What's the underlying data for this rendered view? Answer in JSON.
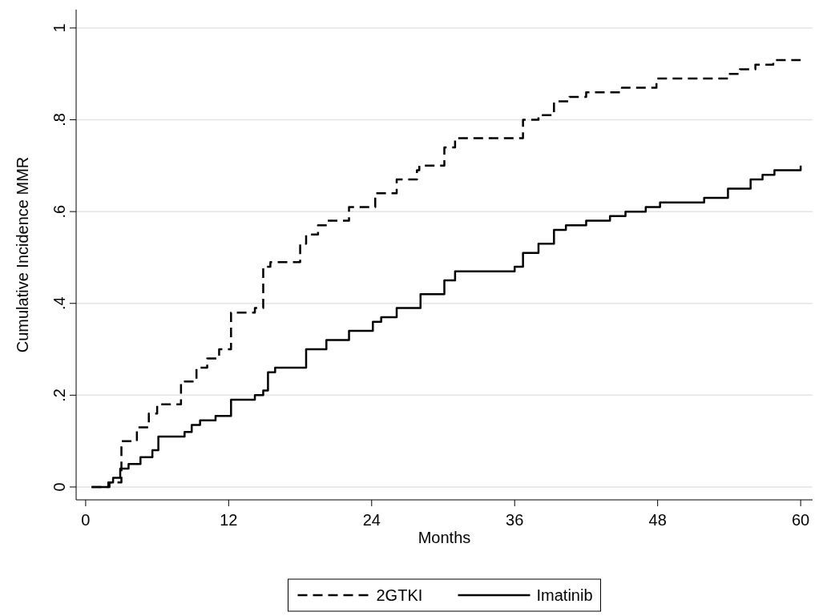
{
  "chart_data": {
    "type": "step",
    "xlabel": "Months",
    "ylabel": "Cumulative Incidence MMR",
    "xlim": [
      -0.8,
      61
    ],
    "ylim": [
      -0.028,
      1.04
    ],
    "xticks": [
      0,
      12,
      24,
      36,
      48,
      60
    ],
    "yticks": [
      0,
      {
        "value": 0.2,
        "label": ".2"
      },
      {
        "value": 0.4,
        "label": ".4"
      },
      {
        "value": 0.6,
        "label": ".6"
      },
      {
        "value": 0.8,
        "label": ".8"
      },
      1
    ],
    "grid": "y",
    "legend": "bottom",
    "series": [
      {
        "name": "2GTKI",
        "color": "#000000",
        "line_style": "dashed",
        "x": [
          0.5,
          1.9,
          3,
          4.3,
          5.3,
          6,
          8,
          9.3,
          10.2,
          11.2,
          12.2,
          14.2,
          14.9,
          15.5,
          18,
          18.5,
          19.5,
          20.3,
          22.1,
          24.3,
          26.1,
          27.8,
          28,
          30.1,
          31,
          35.7,
          36.7,
          38,
          39.3,
          40.6,
          42,
          43.6,
          45,
          47.9,
          53.9,
          54.9,
          56.2,
          57.7,
          60
        ],
        "values": [
          0,
          0.01,
          0.1,
          0.13,
          0.16,
          0.18,
          0.23,
          0.26,
          0.28,
          0.3,
          0.38,
          0.39,
          0.48,
          0.49,
          0.53,
          0.55,
          0.57,
          0.58,
          0.61,
          0.64,
          0.67,
          0.69,
          0.7,
          0.74,
          0.76,
          0.76,
          0.8,
          0.81,
          0.84,
          0.85,
          0.86,
          0.86,
          0.87,
          0.89,
          0.9,
          0.91,
          0.92,
          0.93,
          0.93
        ]
      },
      {
        "name": "Imatinib",
        "color": "#000000",
        "line_style": "solid",
        "x": [
          0.5,
          2,
          2.3,
          2.9,
          3.6,
          4.6,
          5.6,
          6.1,
          8.3,
          8.9,
          9.6,
          10.9,
          12.2,
          14.2,
          14.9,
          15.3,
          15.9,
          18.5,
          20.2,
          22.1,
          24.1,
          24.8,
          26.1,
          28.1,
          30.1,
          31,
          36,
          36.7,
          38,
          39.3,
          40.3,
          42,
          44,
          45.3,
          47,
          48.2,
          51.9,
          53.9,
          55.8,
          56.8,
          57.8,
          60
        ],
        "values": [
          0,
          0.01,
          0.02,
          0.04,
          0.05,
          0.065,
          0.08,
          0.11,
          0.12,
          0.135,
          0.145,
          0.155,
          0.19,
          0.2,
          0.21,
          0.25,
          0.26,
          0.3,
          0.32,
          0.34,
          0.36,
          0.37,
          0.39,
          0.42,
          0.45,
          0.47,
          0.48,
          0.51,
          0.53,
          0.56,
          0.57,
          0.58,
          0.59,
          0.6,
          0.61,
          0.62,
          0.63,
          0.65,
          0.67,
          0.68,
          0.69,
          0.7
        ]
      }
    ]
  }
}
